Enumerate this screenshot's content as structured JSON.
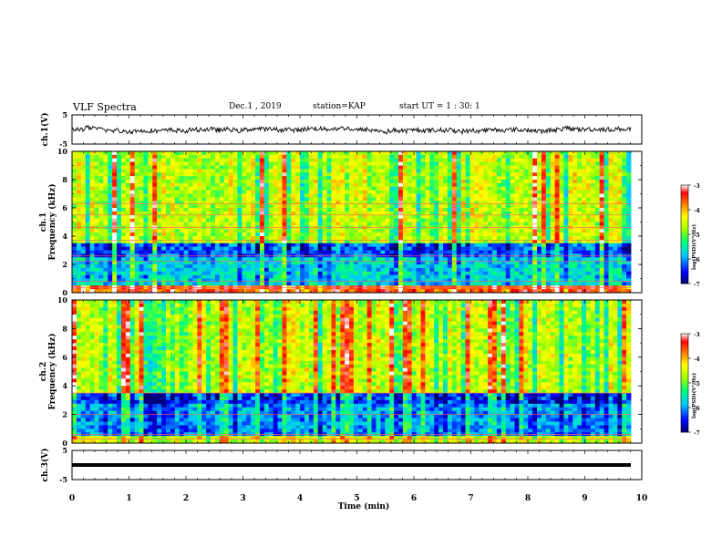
{
  "header": {
    "title": "VLF Spectra",
    "date": "Dec.1 , 2019",
    "station": "station=KAP",
    "start_ut": "start UT = 1 : 30: 1"
  },
  "chart_data": [
    {
      "type": "line",
      "panel": "ch1-waveform",
      "ylabel": "ch.1(V)",
      "ylim": [
        -5,
        5
      ],
      "yticks": [
        "5",
        "-5"
      ],
      "x_range_min": [
        0,
        9.8
      ],
      "baseline_v": 0,
      "amplitude_range_v": [
        -2,
        2
      ]
    },
    {
      "type": "heatmap",
      "panel": "ch1-spectrogram",
      "ylabel": "ch.1 Frequency (kHz)",
      "ylim": [
        0,
        10
      ],
      "yticks": [
        "0",
        "2",
        "4",
        "6",
        "8",
        "10"
      ],
      "x_range_min": [
        0,
        9.8
      ],
      "colorbar": {
        "label": "log(PSD)(V²/Hz)",
        "range": [
          -7,
          -3
        ],
        "ticks": [
          "-3",
          "-4",
          "-5",
          "-6",
          "-7"
        ],
        "colors": [
          "#000080",
          "#0000ff",
          "#00c8ff",
          "#00ff80",
          "#c8ff00",
          "#ffff00",
          "#ff8000",
          "#ff0000",
          "#ffffff"
        ]
      },
      "dominant_level_by_band": [
        {
          "band_khz": [
            0,
            0.5
          ],
          "log_psd": -3.5
        },
        {
          "band_khz": [
            0.5,
            2.5
          ],
          "log_psd": -5.7
        },
        {
          "band_khz": [
            2.5,
            3.4
          ],
          "log_psd": -6.2
        },
        {
          "band_khz": [
            3.4,
            10
          ],
          "log_psd": -4.6
        }
      ]
    },
    {
      "type": "heatmap",
      "panel": "ch2-spectrogram",
      "ylabel": "ch.2 Frequency (kHz)",
      "ylim": [
        0,
        10
      ],
      "yticks": [
        "0",
        "2",
        "4",
        "6",
        "8",
        "10"
      ],
      "x_range_min": [
        0,
        9.8
      ],
      "colorbar": {
        "label": "log(PSD)(V²/Hz)",
        "range": [
          -7,
          -3
        ],
        "ticks": [
          "-3",
          "-4",
          "-5",
          "-6",
          "-7"
        ]
      },
      "dominant_level_by_band": [
        {
          "band_khz": [
            0,
            0.5
          ],
          "log_psd": -4.5
        },
        {
          "band_khz": [
            0.5,
            2.8
          ],
          "log_psd": -6.0
        },
        {
          "band_khz": [
            2.8,
            3.5
          ],
          "log_psd": -6.4
        },
        {
          "band_khz": [
            3.5,
            10
          ],
          "log_psd": -4.6
        }
      ]
    },
    {
      "type": "line",
      "panel": "ch3-waveform",
      "ylabel": "ch.3(V)",
      "ylim": [
        -5,
        5
      ],
      "yticks": [
        "5",
        "-5"
      ],
      "x_range_min": [
        0,
        9.8
      ],
      "constant_v": 0
    }
  ],
  "xaxis": {
    "label": "Time (min)",
    "ticks": [
      "0",
      "1",
      "2",
      "3",
      "4",
      "5",
      "6",
      "7",
      "8",
      "9",
      "10"
    ],
    "range": [
      0,
      10
    ]
  }
}
